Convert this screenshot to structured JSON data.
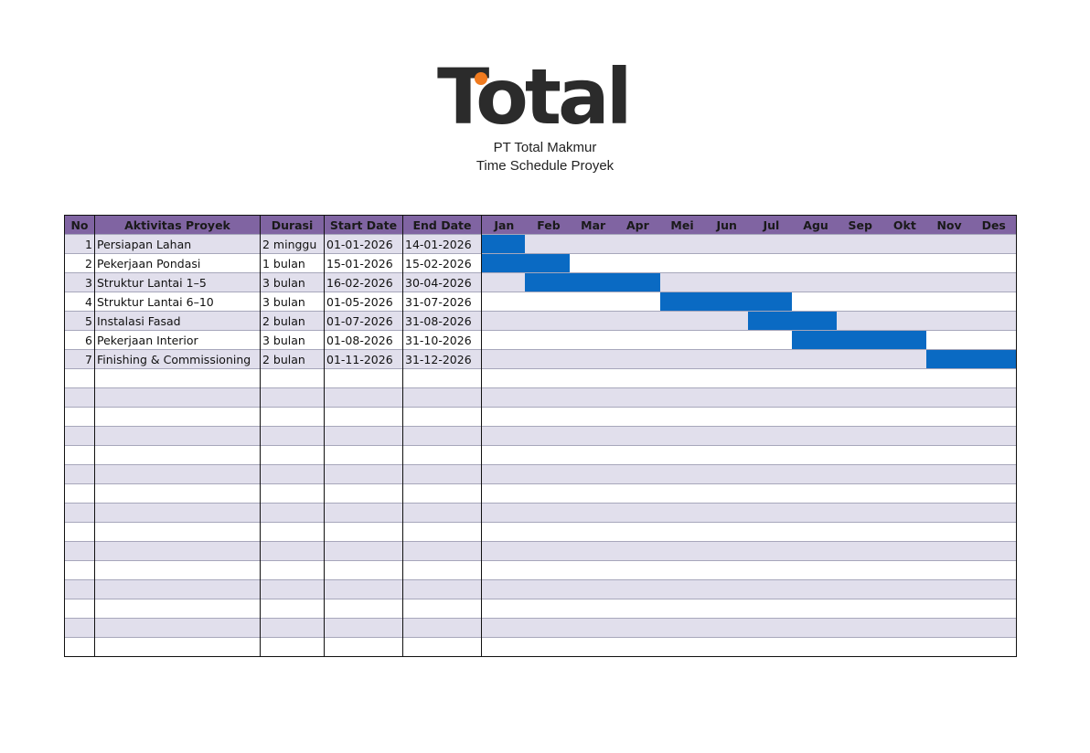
{
  "header": {
    "logo_text": "Total",
    "logo_dot_color": "#f07a1e",
    "company": "PT Total Makmur",
    "document_title": "Time Schedule Proyek"
  },
  "table": {
    "columns": {
      "no": "No",
      "activity": "Aktivitas Proyek",
      "duration": "Durasi",
      "start": "Start Date",
      "end": "End Date"
    },
    "months": [
      "Jan",
      "Feb",
      "Mar",
      "Apr",
      "Mei",
      "Jun",
      "Jul",
      "Agu",
      "Sep",
      "Okt",
      "Nov",
      "Des"
    ],
    "rows": [
      {
        "no": "1",
        "activity": "Persiapan Lahan",
        "duration": "2 minggu",
        "start": "01-01-2026",
        "end": "14-01-2026",
        "bar_start": 0,
        "bar_end": 0.97
      },
      {
        "no": "2",
        "activity": "Pekerjaan Pondasi",
        "duration": "1 bulan",
        "start": "15-01-2026",
        "end": "15-02-2026",
        "bar_start": 0,
        "bar_end": 1.97
      },
      {
        "no": "3",
        "activity": "Struktur Lantai 1–5",
        "duration": "3 bulan",
        "start": "16-02-2026",
        "end": "30-04-2026",
        "bar_start": 0.97,
        "bar_end": 4.0
      },
      {
        "no": "4",
        "activity": "Struktur Lantai 6–10",
        "duration": "3 bulan",
        "start": "01-05-2026",
        "end": "31-07-2026",
        "bar_start": 4.0,
        "bar_end": 6.97
      },
      {
        "no": "5",
        "activity": "Instalasi Fasad",
        "duration": "2 bulan",
        "start": "01-07-2026",
        "end": "31-08-2026",
        "bar_start": 5.97,
        "bar_end": 7.98
      },
      {
        "no": "6",
        "activity": "Pekerjaan Interior",
        "duration": "3 bulan",
        "start": "01-08-2026",
        "end": "31-10-2026",
        "bar_start": 6.96,
        "bar_end": 9.98
      },
      {
        "no": "7",
        "activity": "Finishing & Commissioning",
        "duration": "2 bulan",
        "start": "01-11-2026",
        "end": "31-12-2026",
        "bar_start": 9.98,
        "bar_end": 12
      }
    ],
    "empty_rows": 15,
    "colors": {
      "header_bg": "#8064a2",
      "band_bg": "#e1dfec",
      "bar": "#0a6ac3"
    }
  }
}
